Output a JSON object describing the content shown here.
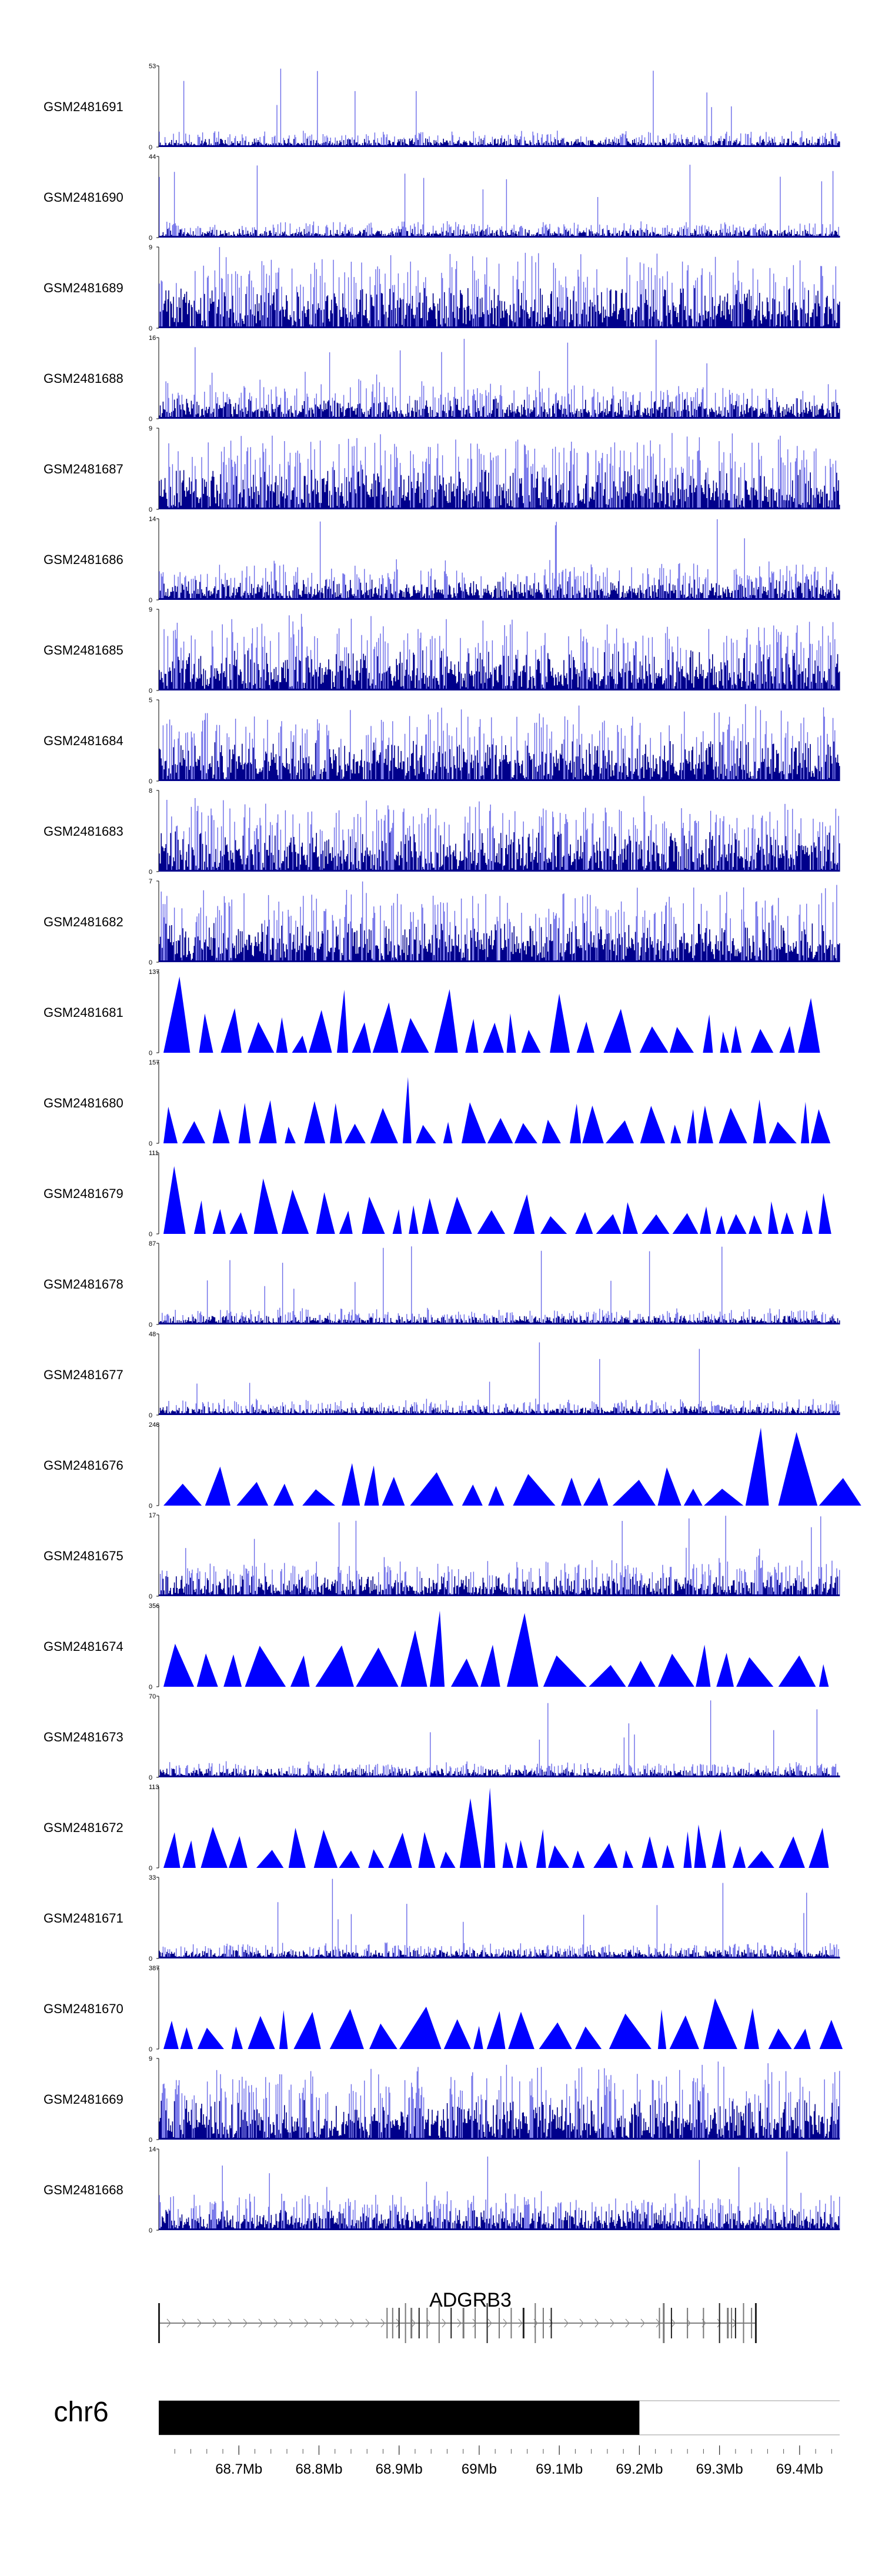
{
  "chart_data": {
    "type": "genome-browser-coverage",
    "region": {
      "chrom": "chr6",
      "start_mb": 68.6,
      "end_mb": 69.45
    },
    "tracks": [
      {
        "name": "GSM2481691",
        "ymax": 53,
        "ymin": 0,
        "style": "bars"
      },
      {
        "name": "GSM2481690",
        "ymax": 44,
        "ymin": 0,
        "style": "bars"
      },
      {
        "name": "GSM2481689",
        "ymax": 9,
        "ymin": 0,
        "style": "bars"
      },
      {
        "name": "GSM2481688",
        "ymax": 16,
        "ymin": 0,
        "style": "bars"
      },
      {
        "name": "GSM2481687",
        "ymax": 9,
        "ymin": 0,
        "style": "bars"
      },
      {
        "name": "GSM2481686",
        "ymax": 14,
        "ymin": 0,
        "style": "bars"
      },
      {
        "name": "GSM2481685",
        "ymax": 9,
        "ymin": 0,
        "style": "bars"
      },
      {
        "name": "GSM2481684",
        "ymax": 5,
        "ymin": 0,
        "style": "bars"
      },
      {
        "name": "GSM2481683",
        "ymax": 8,
        "ymin": 0,
        "style": "bars"
      },
      {
        "name": "GSM2481682",
        "ymax": 7,
        "ymin": 0,
        "style": "bars"
      },
      {
        "name": "GSM2481681",
        "ymax": 137,
        "ymin": 0,
        "style": "peaks"
      },
      {
        "name": "GSM2481680",
        "ymax": 157,
        "ymin": 0,
        "style": "peaks"
      },
      {
        "name": "GSM2481679",
        "ymax": 111,
        "ymin": 0,
        "style": "peaks"
      },
      {
        "name": "GSM2481678",
        "ymax": 87,
        "ymin": 0,
        "style": "bars"
      },
      {
        "name": "GSM2481677",
        "ymax": 48,
        "ymin": 0,
        "style": "bars"
      },
      {
        "name": "GSM2481676",
        "ymax": 248,
        "ymin": 0,
        "style": "peaks"
      },
      {
        "name": "GSM2481675",
        "ymax": 17,
        "ymin": 0,
        "style": "bars"
      },
      {
        "name": "GSM2481674",
        "ymax": 356,
        "ymin": 0,
        "style": "peaks"
      },
      {
        "name": "GSM2481673",
        "ymax": 70,
        "ymin": 0,
        "style": "bars"
      },
      {
        "name": "GSM2481672",
        "ymax": 113,
        "ymin": 0,
        "style": "peaks"
      },
      {
        "name": "GSM2481671",
        "ymax": 33,
        "ymin": 0,
        "style": "bars"
      },
      {
        "name": "GSM2481670",
        "ymax": 387,
        "ymin": 0,
        "style": "peaks"
      },
      {
        "name": "GSM2481669",
        "ymax": 9,
        "ymin": 0,
        "style": "bars"
      },
      {
        "name": "GSM2481668",
        "ymax": 14,
        "ymin": 0,
        "style": "bars"
      }
    ],
    "gene": {
      "name": "ADGRB3",
      "start_mb": 68.6,
      "end_mb": 69.345,
      "strand": "+"
    },
    "ideogram": {
      "chrom_label": "chr6",
      "highlight_start_mb": 68.6,
      "highlight_end_mb": 69.2
    },
    "x_ticks": [
      {
        "value": 68.7,
        "label": "68.7Mb"
      },
      {
        "value": 68.8,
        "label": "68.8Mb"
      },
      {
        "value": 68.9,
        "label": "68.9Mb"
      },
      {
        "value": 69.0,
        "label": "69Mb"
      },
      {
        "value": 69.1,
        "label": "69.1Mb"
      },
      {
        "value": 69.2,
        "label": "69.2Mb"
      },
      {
        "value": 69.3,
        "label": "69.3Mb"
      },
      {
        "value": 69.4,
        "label": "69.4Mb"
      }
    ],
    "colors": {
      "bar_dark": "#00008b",
      "bar_light": "#6a6ae8",
      "peak_fill": "#0000ff",
      "axis": "#000000",
      "ideogram_fill": "#000000",
      "gene_line": "#555555"
    }
  }
}
